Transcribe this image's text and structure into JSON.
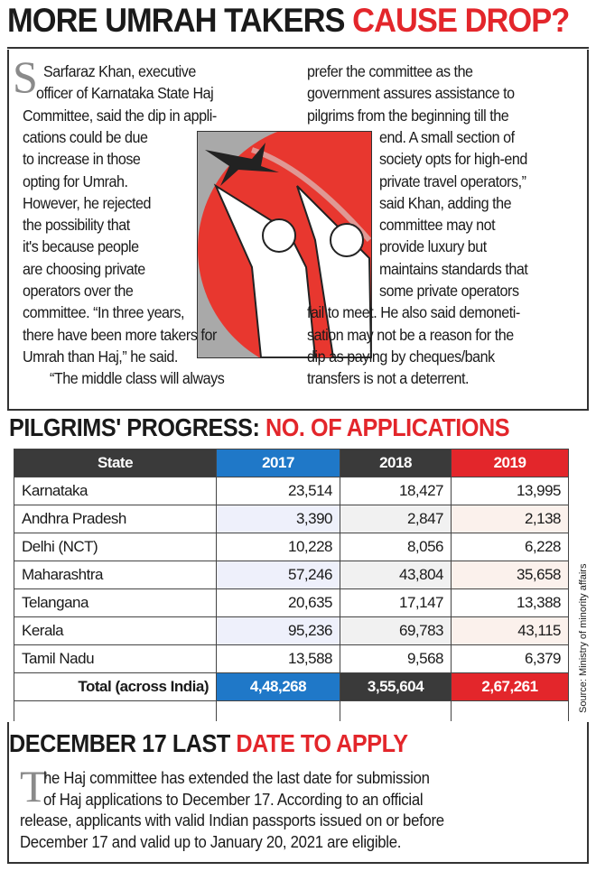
{
  "headline": {
    "black": "MORE UMRAH TAKERS",
    "red": "CAUSE DROP?"
  },
  "article": {
    "dropcap": "S",
    "left_lines": [
      "Sarfaraz Khan, executive",
      "officer of Karnataka State Haj",
      "Committee, said the dip in appli-",
      "cations could be due",
      "to increase in those",
      "opting for Umrah.",
      "However, he rejected",
      "the possibility that",
      "it's because people",
      "are choosing private",
      "operators over the",
      "committee. “In three years,",
      "there have been more takers for",
      "Umrah than Haj,” he said.",
      "“The middle class will always"
    ],
    "right_lines": [
      "prefer the committee as the",
      "government assures assistance to",
      "pilgrims from the beginning till the",
      "end. A small section of",
      "society opts for high-end",
      "private travel operators,”",
      "said Khan, adding the",
      "committee may not",
      "provide luxury but",
      "maintains standards that",
      "some private operators",
      "fail to meet. He also said demoneti-",
      "sation may not be a reason for the",
      "dip as paying by cheques/bank",
      "transfers is not a deterrent."
    ]
  },
  "table_section": {
    "title_black": "PILGRIMS' PROGRESS:",
    "title_red": "NO. OF APPLICATIONS",
    "headers": [
      "State",
      "2017",
      "2018",
      "2019"
    ],
    "header_colors": [
      "#3a3a3a",
      "#1f78c8",
      "#3a3a3a",
      "#e3262b"
    ],
    "rows": [
      [
        "Karnataka",
        "23,514",
        "18,427",
        "13,995"
      ],
      [
        "Andhra Pradesh",
        "3,390",
        "2,847",
        "2,138"
      ],
      [
        "Delhi (NCT)",
        "10,228",
        "8,056",
        "6,228"
      ],
      [
        "Maharashtra",
        "57,246",
        "43,804",
        "35,658"
      ],
      [
        "Telangana",
        "20,635",
        "17,147",
        "13,388"
      ],
      [
        "Kerala",
        "95,236",
        "69,783",
        "43,115"
      ],
      [
        "Tamil Nadu",
        "13,588",
        "9,568",
        "6,379"
      ]
    ],
    "total": [
      "Total (across India)",
      "4,48,268",
      "3,55,604",
      "2,67,261"
    ],
    "source": "Source: Ministry of minority affairs"
  },
  "footer": {
    "title_black": "DECEMBER 17 LAST",
    "title_red": "DATE TO APPLY",
    "dropcap": "T",
    "lines": [
      "he Haj committee has extended the last date for submission",
      "of Haj applications to December 17. According to an official",
      "release, applicants with valid Indian passports issued on or before",
      "December 17 and valid up to January 20, 2021 are eligible."
    ]
  }
}
